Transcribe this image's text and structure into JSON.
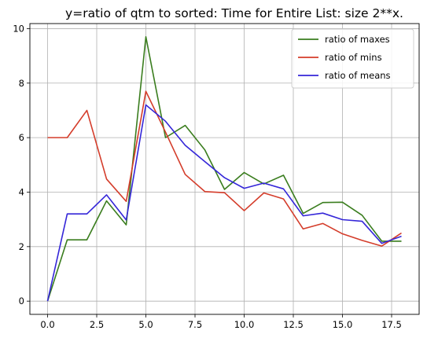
{
  "chart_data": {
    "type": "line",
    "title": "y=ratio of qtm to sorted: Time for Entire List: size 2**x.",
    "xlabel": "",
    "ylabel": "",
    "xlim": [
      -0.9,
      18.9
    ],
    "ylim": [
      -0.485,
      10.185
    ],
    "xticks": [
      0.0,
      2.5,
      5.0,
      7.5,
      10.0,
      12.5,
      15.0,
      17.5
    ],
    "xtick_labels": [
      "0.0",
      "2.5",
      "5.0",
      "7.5",
      "10.0",
      "12.5",
      "15.0",
      "17.5"
    ],
    "yticks": [
      0,
      2,
      4,
      6,
      8,
      10
    ],
    "ytick_labels": [
      "0",
      "2",
      "4",
      "6",
      "8",
      "10"
    ],
    "grid": true,
    "legend_position": "top-right",
    "x": [
      0,
      1,
      2,
      3,
      4,
      5,
      6,
      7,
      8,
      9,
      10,
      11,
      12,
      13,
      14,
      15,
      16,
      17,
      18
    ],
    "series": [
      {
        "name": "ratio of maxes",
        "color": "#3a7d1e",
        "values": [
          0.0,
          2.25,
          2.25,
          3.68,
          2.8,
          9.7,
          6.0,
          6.45,
          5.55,
          4.1,
          4.72,
          4.3,
          4.62,
          3.22,
          3.62,
          3.63,
          3.15,
          2.2,
          2.2
        ]
      },
      {
        "name": "ratio of mins",
        "color": "#d43c2a",
        "values": [
          6.0,
          6.0,
          7.0,
          4.48,
          3.66,
          7.7,
          6.2,
          4.65,
          4.02,
          3.98,
          3.32,
          3.97,
          3.75,
          2.65,
          2.85,
          2.47,
          2.23,
          2.02,
          2.5
        ]
      },
      {
        "name": "ratio of means",
        "color": "#3426d8",
        "values": [
          0.0,
          3.2,
          3.2,
          3.9,
          2.98,
          7.2,
          6.6,
          5.72,
          5.12,
          4.53,
          4.14,
          4.33,
          4.12,
          3.13,
          3.23,
          2.99,
          2.93,
          2.12,
          2.38
        ]
      }
    ]
  }
}
